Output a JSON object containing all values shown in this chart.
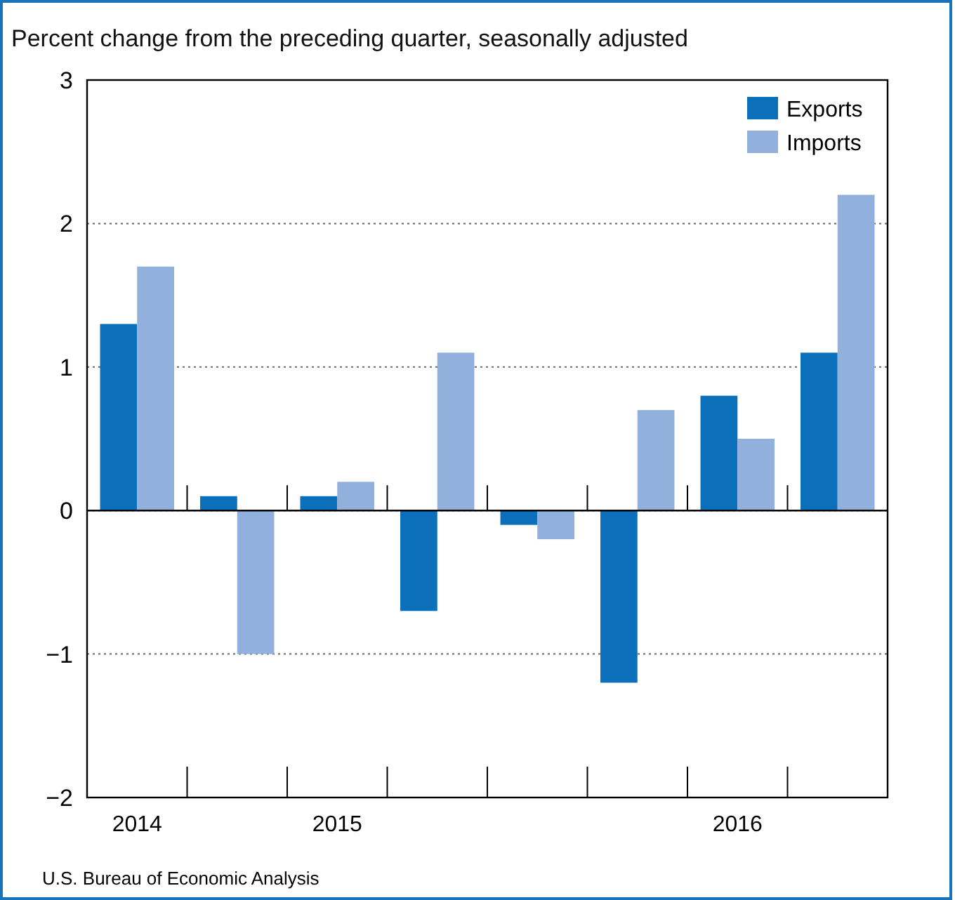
{
  "chart_data": {
    "type": "bar",
    "title": "Percent change from the preceding quarter, seasonally adjusted",
    "categories": [
      "2014",
      null,
      "2015",
      null,
      null,
      null,
      "2016",
      null
    ],
    "series": [
      {
        "name": "Exports",
        "color": "#0b6fba",
        "values": [
          1.3,
          0.1,
          0.1,
          -0.7,
          -0.1,
          -1.2,
          0.8,
          1.1
        ]
      },
      {
        "name": "Imports",
        "color": "#92b0dc",
        "values": [
          1.7,
          -1.0,
          0.2,
          1.1,
          -0.2,
          0.7,
          0.5,
          2.2
        ]
      }
    ],
    "ylim": [
      -2,
      3
    ],
    "yticks": [
      {
        "value": -2,
        "label": "−2"
      },
      {
        "value": -1,
        "label": "−1"
      },
      0,
      1,
      2,
      3
    ],
    "grid": "y",
    "legend": "top right",
    "annotations": [
      "U.S. Bureau of Economic Analysis"
    ]
  }
}
